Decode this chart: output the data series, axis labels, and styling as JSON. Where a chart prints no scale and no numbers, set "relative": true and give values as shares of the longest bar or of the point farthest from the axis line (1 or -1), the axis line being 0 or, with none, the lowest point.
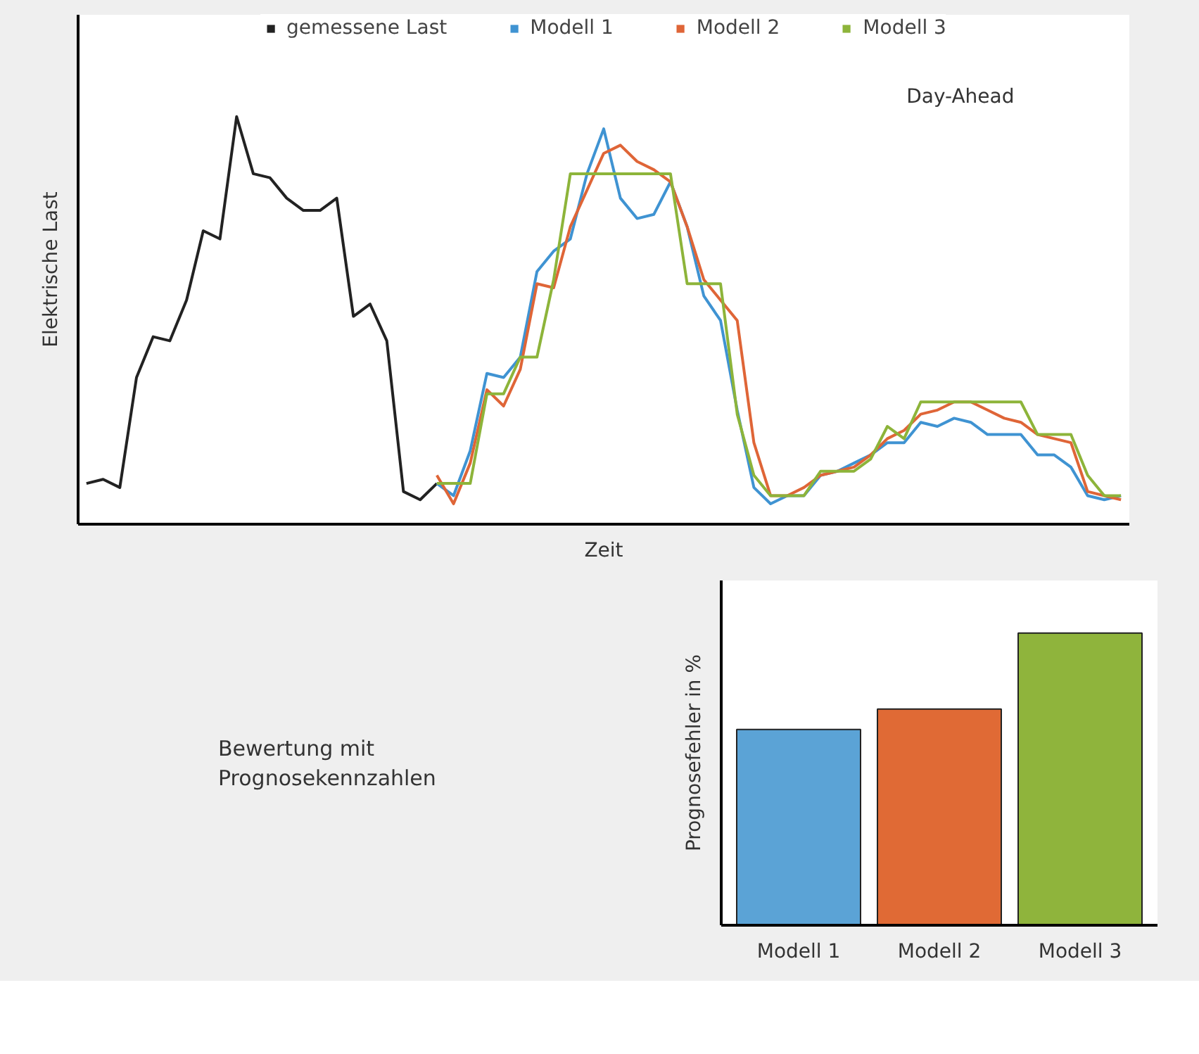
{
  "chart_data": [
    {
      "type": "line",
      "xlabel": "Zeit",
      "ylabel": "Elektrische Last",
      "relative": true,
      "grid": false,
      "legend": "top",
      "line_style": "solid",
      "annotations": [
        "Day-Ahead"
      ],
      "categories": [
        null,
        null,
        null,
        null,
        null,
        null,
        null,
        null,
        null,
        null,
        null,
        null,
        null,
        null,
        null,
        null,
        null,
        null,
        null,
        null,
        null,
        null,
        null,
        null,
        null,
        null,
        null,
        null,
        null,
        null,
        null,
        null,
        null,
        null,
        null,
        null,
        null,
        null,
        null,
        null,
        null,
        null,
        null,
        null,
        null,
        null,
        null,
        null,
        null,
        null,
        null,
        null,
        null,
        null,
        null,
        null,
        null,
        null,
        null,
        null,
        null,
        null,
        null
      ],
      "series": [
        {
          "name": "gemessene Last",
          "color": "#222222",
          "values": [
            0.1,
            0.11,
            0.09,
            0.36,
            0.46,
            0.45,
            0.55,
            0.72,
            0.7,
            1.0,
            0.86,
            0.85,
            0.8,
            0.77,
            0.77,
            0.8,
            0.51,
            0.54,
            0.45,
            0.08,
            0.06,
            0.1,
            null,
            null,
            null,
            null,
            null,
            null,
            null,
            null,
            null,
            null,
            null,
            null,
            null,
            null,
            null,
            null,
            null,
            null,
            null,
            null,
            null,
            null,
            null,
            null,
            null,
            null,
            null,
            null,
            null,
            null,
            null,
            null,
            null,
            null,
            null,
            null,
            null,
            null,
            null,
            null,
            null
          ]
        },
        {
          "name": "Modell 1",
          "color": "#3f93d2",
          "values": [
            null,
            null,
            null,
            null,
            null,
            null,
            null,
            null,
            null,
            null,
            null,
            null,
            null,
            null,
            null,
            null,
            null,
            null,
            null,
            null,
            null,
            0.1,
            0.07,
            0.18,
            0.37,
            0.36,
            0.41,
            0.62,
            0.67,
            0.7,
            0.86,
            0.97,
            0.8,
            0.75,
            0.76,
            0.84,
            0.73,
            0.56,
            0.5,
            0.28,
            0.09,
            0.05,
            0.07,
            0.07,
            0.12,
            0.13,
            0.15,
            0.17,
            0.2,
            0.2,
            0.25,
            0.24,
            0.26,
            0.25,
            0.22,
            0.22,
            0.22,
            0.17,
            0.17,
            0.14,
            0.07,
            0.06,
            0.07
          ]
        },
        {
          "name": "Modell 2",
          "color": "#df6537",
          "values": [
            null,
            null,
            null,
            null,
            null,
            null,
            null,
            null,
            null,
            null,
            null,
            null,
            null,
            null,
            null,
            null,
            null,
            null,
            null,
            null,
            null,
            0.12,
            0.05,
            0.15,
            0.33,
            0.29,
            0.38,
            0.59,
            0.58,
            0.73,
            0.82,
            0.91,
            0.93,
            0.89,
            0.87,
            0.84,
            0.73,
            0.6,
            0.55,
            0.5,
            0.2,
            0.07,
            0.07,
            0.09,
            0.12,
            0.13,
            0.14,
            0.17,
            0.21,
            0.23,
            0.27,
            0.28,
            0.3,
            0.3,
            0.28,
            0.26,
            0.25,
            0.22,
            0.21,
            0.2,
            0.08,
            0.07,
            0.06
          ]
        },
        {
          "name": "Modell 3",
          "color": "#8db43a",
          "values": [
            null,
            null,
            null,
            null,
            null,
            null,
            null,
            null,
            null,
            null,
            null,
            null,
            null,
            null,
            null,
            null,
            null,
            null,
            null,
            null,
            null,
            0.1,
            0.1,
            0.1,
            0.32,
            0.32,
            0.41,
            0.41,
            0.6,
            0.86,
            0.86,
            0.86,
            0.86,
            0.86,
            0.86,
            0.86,
            0.59,
            0.59,
            0.59,
            0.27,
            0.12,
            0.07,
            0.07,
            0.07,
            0.13,
            0.13,
            0.13,
            0.16,
            0.24,
            0.21,
            0.3,
            0.3,
            0.3,
            0.3,
            0.3,
            0.3,
            0.3,
            0.22,
            0.22,
            0.22,
            0.12,
            0.07,
            0.07
          ]
        }
      ]
    },
    {
      "type": "bar",
      "ylabel": "Prognosefehler in %",
      "relative": true,
      "legend": false,
      "grid": false,
      "categories": [
        "Modell 1",
        "Modell 2",
        "Modell 3"
      ],
      "values": [
        0.67,
        0.74,
        1.0
      ],
      "colors": [
        "#5ba3d6",
        "#e06a35",
        "#8fb43c"
      ],
      "annotations": [
        "Bewertung mit Prognosekennzahlen"
      ]
    }
  ]
}
